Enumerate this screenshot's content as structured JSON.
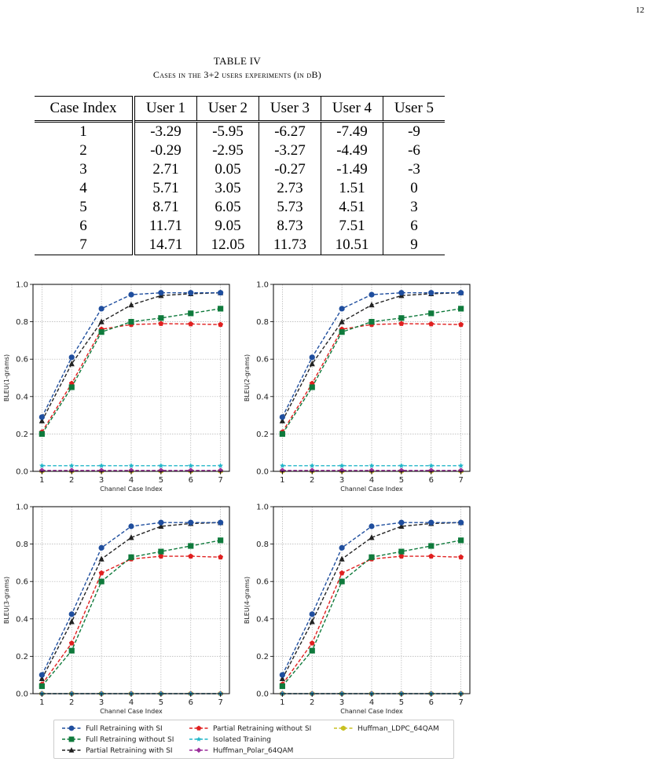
{
  "page_number": "12",
  "table": {
    "caption_line1": "TABLE IV",
    "caption_line2": "Cases in the 3+2 users experiments (in dB)",
    "headers": [
      "Case Index",
      "User 1",
      "User 2",
      "User 3",
      "User 4",
      "User 5"
    ],
    "rows": [
      [
        "1",
        "-3.29",
        "-5.95",
        "-6.27",
        "-7.49",
        "-9"
      ],
      [
        "2",
        "-0.29",
        "-2.95",
        "-3.27",
        "-4.49",
        "-6"
      ],
      [
        "3",
        "2.71",
        "0.05",
        "-0.27",
        "-1.49",
        "-3"
      ],
      [
        "4",
        "5.71",
        "3.05",
        "2.73",
        "1.51",
        "0"
      ],
      [
        "5",
        "8.71",
        "6.05",
        "5.73",
        "4.51",
        "3"
      ],
      [
        "6",
        "11.71",
        "9.05",
        "8.73",
        "7.51",
        "6"
      ],
      [
        "7",
        "14.71",
        "12.05",
        "11.73",
        "10.51",
        "9"
      ]
    ]
  },
  "legend_entries": [
    {
      "label": "Full Retraining with SI",
      "color": "#1f4e9e",
      "marker": "circle"
    },
    {
      "label": "Full Retraining without SI",
      "color": "#0f7a3c",
      "marker": "square"
    },
    {
      "label": "Partial Retraining with SI",
      "color": "#222222",
      "marker": "triangle"
    },
    {
      "label": "Partial Retraining without SI",
      "color": "#e02020",
      "marker": "pentagon"
    },
    {
      "label": "Isolated Training",
      "color": "#20b5c8",
      "marker": "star"
    },
    {
      "label": "Huffman_Polar_64QAM",
      "color": "#9b2f9b",
      "marker": "diamond"
    },
    {
      "label": "Huffman_LDPC_64QAM",
      "color": "#c8c020",
      "marker": "hexagon"
    }
  ],
  "chart_data": [
    {
      "type": "line",
      "xlabel": "Channel Case Index",
      "ylabel": "BLEU(1-grams)",
      "x": [
        1,
        2,
        3,
        4,
        5,
        6,
        7
      ],
      "xlim": [
        0.7,
        7.3
      ],
      "ylim": [
        0,
        1
      ],
      "yticks": [
        "0.0",
        "0.2",
        "0.4",
        "0.6",
        "0.8",
        "1.0"
      ],
      "grid": true,
      "series": [
        {
          "name": "Full Retraining with SI",
          "values": [
            0.29,
            0.61,
            0.87,
            0.945,
            0.955,
            0.955,
            0.955
          ]
        },
        {
          "name": "Full Retraining without SI",
          "values": [
            0.2,
            0.45,
            0.745,
            0.8,
            0.82,
            0.845,
            0.87
          ]
        },
        {
          "name": "Partial Retraining with SI",
          "values": [
            0.27,
            0.575,
            0.8,
            0.89,
            0.94,
            0.95,
            0.955
          ]
        },
        {
          "name": "Partial Retraining without SI",
          "values": [
            0.21,
            0.47,
            0.76,
            0.785,
            0.79,
            0.788,
            0.785
          ]
        },
        {
          "name": "Isolated Training",
          "values": [
            0.03,
            0.03,
            0.03,
            0.03,
            0.03,
            0.03,
            0.03
          ]
        },
        {
          "name": "Huffman_Polar_64QAM",
          "values": [
            0.005,
            0.005,
            0.005,
            0.005,
            0.005,
            0.005,
            0.005
          ]
        },
        {
          "name": "Huffman_LDPC_64QAM",
          "values": [
            0.002,
            0.002,
            0.002,
            0.002,
            0.002,
            0.002,
            0.002
          ]
        }
      ]
    },
    {
      "type": "line",
      "xlabel": "Channel Case Index",
      "ylabel": "BLEU(2-grams)",
      "x": [
        1,
        2,
        3,
        4,
        5,
        6,
        7
      ],
      "xlim": [
        0.7,
        7.3
      ],
      "ylim": [
        0,
        1
      ],
      "yticks": [
        "0.0",
        "0.2",
        "0.4",
        "0.6",
        "0.8",
        "1.0"
      ],
      "grid": true,
      "series": [
        {
          "name": "Full Retraining with SI",
          "values": [
            0.29,
            0.61,
            0.87,
            0.945,
            0.955,
            0.955,
            0.955
          ]
        },
        {
          "name": "Full Retraining without SI",
          "values": [
            0.2,
            0.45,
            0.745,
            0.8,
            0.82,
            0.845,
            0.87
          ]
        },
        {
          "name": "Partial Retraining with SI",
          "values": [
            0.27,
            0.575,
            0.8,
            0.89,
            0.94,
            0.95,
            0.955
          ]
        },
        {
          "name": "Partial Retraining without SI",
          "values": [
            0.21,
            0.47,
            0.76,
            0.785,
            0.79,
            0.788,
            0.785
          ]
        },
        {
          "name": "Isolated Training",
          "values": [
            0.03,
            0.03,
            0.03,
            0.03,
            0.03,
            0.03,
            0.03
          ]
        },
        {
          "name": "Huffman_Polar_64QAM",
          "values": [
            0.005,
            0.005,
            0.005,
            0.005,
            0.005,
            0.005,
            0.005
          ]
        },
        {
          "name": "Huffman_LDPC_64QAM",
          "values": [
            0.002,
            0.002,
            0.002,
            0.002,
            0.002,
            0.002,
            0.002
          ]
        }
      ]
    },
    {
      "type": "line",
      "xlabel": "Channel Case Index",
      "ylabel": "BLEU(3-grams)",
      "x": [
        1,
        2,
        3,
        4,
        5,
        6,
        7
      ],
      "xlim": [
        0.7,
        7.3
      ],
      "ylim": [
        0,
        1
      ],
      "yticks": [
        "0.0",
        "0.2",
        "0.4",
        "0.6",
        "0.8",
        "1.0"
      ],
      "grid": true,
      "series": [
        {
          "name": "Full Retraining with SI",
          "values": [
            0.1,
            0.425,
            0.78,
            0.895,
            0.915,
            0.915,
            0.915
          ]
        },
        {
          "name": "Full Retraining without SI",
          "values": [
            0.04,
            0.23,
            0.6,
            0.73,
            0.76,
            0.79,
            0.82
          ]
        },
        {
          "name": "Partial Retraining with SI",
          "values": [
            0.08,
            0.385,
            0.72,
            0.835,
            0.895,
            0.91,
            0.915
          ]
        },
        {
          "name": "Partial Retraining without SI",
          "values": [
            0.05,
            0.27,
            0.645,
            0.72,
            0.735,
            0.735,
            0.73
          ]
        },
        {
          "name": "Isolated Training",
          "values": [
            0.0,
            0.0,
            0.0,
            0.0,
            0.0,
            0.0,
            0.0
          ]
        },
        {
          "name": "Huffman_Polar_64QAM",
          "values": [
            0.0,
            0.0,
            0.0,
            0.0,
            0.0,
            0.0,
            0.0
          ]
        },
        {
          "name": "Huffman_LDPC_64QAM",
          "values": [
            0.0,
            0.0,
            0.0,
            0.0,
            0.0,
            0.0,
            0.0
          ]
        }
      ]
    },
    {
      "type": "line",
      "xlabel": "Channel Case Index",
      "ylabel": "BLEU(4-grams)",
      "x": [
        1,
        2,
        3,
        4,
        5,
        6,
        7
      ],
      "xlim": [
        0.7,
        7.3
      ],
      "ylim": [
        0,
        1
      ],
      "yticks": [
        "0.0",
        "0.2",
        "0.4",
        "0.6",
        "0.8",
        "1.0"
      ],
      "grid": true,
      "series": [
        {
          "name": "Full Retraining with SI",
          "values": [
            0.1,
            0.425,
            0.78,
            0.895,
            0.915,
            0.915,
            0.915
          ]
        },
        {
          "name": "Full Retraining without SI",
          "values": [
            0.04,
            0.23,
            0.6,
            0.73,
            0.76,
            0.79,
            0.82
          ]
        },
        {
          "name": "Partial Retraining with SI",
          "values": [
            0.08,
            0.385,
            0.72,
            0.835,
            0.895,
            0.91,
            0.915
          ]
        },
        {
          "name": "Partial Retraining without SI",
          "values": [
            0.05,
            0.27,
            0.645,
            0.72,
            0.735,
            0.735,
            0.73
          ]
        },
        {
          "name": "Isolated Training",
          "values": [
            0.0,
            0.0,
            0.0,
            0.0,
            0.0,
            0.0,
            0.0
          ]
        },
        {
          "name": "Huffman_Polar_64QAM",
          "values": [
            0.0,
            0.0,
            0.0,
            0.0,
            0.0,
            0.0,
            0.0
          ]
        },
        {
          "name": "Huffman_LDPC_64QAM",
          "values": [
            0.0,
            0.0,
            0.0,
            0.0,
            0.0,
            0.0,
            0.0
          ]
        }
      ]
    }
  ]
}
